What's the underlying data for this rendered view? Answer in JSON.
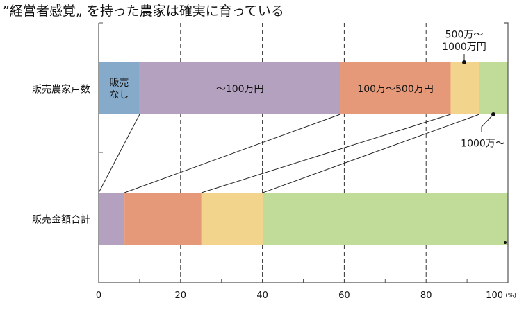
{
  "chart_data": {
    "type": "bar",
    "orientation": "horizontal-stacked-100",
    "title": "”経営者感覚„ を持った農家は確実に育っている",
    "unit_label": "(%)",
    "xlim": [
      0,
      100
    ],
    "x_ticks": [
      "0",
      "20",
      "40",
      "60",
      "80",
      "100"
    ],
    "grid": "dashed vertical at 20, 40, 60, 80",
    "categories": [
      "販売農家戸数",
      "販売金額合計"
    ],
    "segments": [
      {
        "name": "販売なし",
        "label": "販売\nなし",
        "color": "#86aac9",
        "values": [
          10,
          0
        ]
      },
      {
        "name": "〜100万円",
        "label": "〜100万円",
        "color": "#b4a0bf",
        "values": [
          49,
          6.3
        ]
      },
      {
        "name": "100万〜500万円",
        "label": "100万〜500万円",
        "color": "#e69978",
        "values": [
          27,
          18.8
        ]
      },
      {
        "name": "500万〜1000万円",
        "label": "500万〜\n1000万円",
        "color": "#f3d48c",
        "values": [
          7,
          15
        ]
      },
      {
        "name": "1000万〜",
        "label": "1000万〜",
        "color": "#c1dc98",
        "values": [
          7,
          59.9
        ]
      }
    ]
  }
}
